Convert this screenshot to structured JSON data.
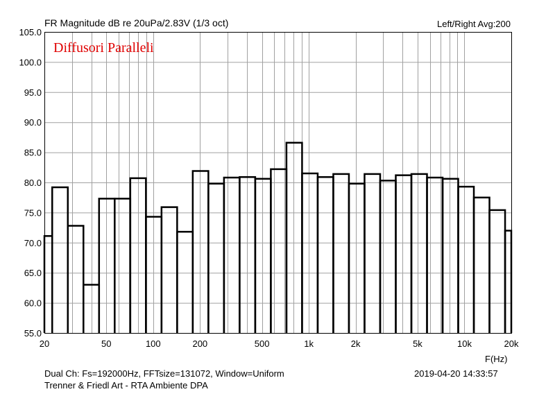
{
  "chart_data": {
    "type": "bar",
    "title": "FR Magnitude dB re 20uPa/2.83V (1/3 oct)",
    "top_right_label": "Left/Right  Avg:200",
    "annotation": "Diffusori Paralleli",
    "xlabel": "F(Hz)",
    "x_scale": "log",
    "xlim": [
      20,
      20000
    ],
    "x_ticks": [
      20,
      50,
      100,
      200,
      500,
      1000,
      2000,
      5000,
      10000,
      20000
    ],
    "x_tick_labels": [
      "20",
      "50",
      "100",
      "200",
      "500",
      "1k",
      "2k",
      "5k",
      "10k",
      "20k"
    ],
    "ylim": [
      55.0,
      105.0
    ],
    "y_ticks": [
      55.0,
      60.0,
      65.0,
      70.0,
      75.0,
      80.0,
      85.0,
      90.0,
      95.0,
      100.0,
      105.0
    ],
    "y_tick_labels": [
      "55.0",
      "60.0",
      "65.0",
      "70.0",
      "75.0",
      "80.0",
      "85.0",
      "90.0",
      "95.0",
      "100.0",
      "105.0"
    ],
    "grid": true,
    "categories": [
      "20",
      "25",
      "31.5",
      "40",
      "50",
      "63",
      "80",
      "100",
      "125",
      "160",
      "200",
      "250",
      "315",
      "400",
      "500",
      "630",
      "800",
      "1k",
      "1.25k",
      "1.6k",
      "2k",
      "2.5k",
      "3.15k",
      "4k",
      "5k",
      "6.3k",
      "8k",
      "10k",
      "12.5k",
      "16k",
      "20k"
    ],
    "values": [
      71.1,
      79.2,
      72.8,
      63.0,
      77.3,
      77.3,
      80.7,
      74.3,
      75.9,
      71.8,
      81.9,
      79.8,
      80.8,
      80.9,
      80.6,
      82.2,
      86.6,
      81.5,
      80.9,
      81.4,
      79.8,
      81.4,
      80.3,
      81.2,
      81.4,
      80.8,
      80.6,
      79.3,
      77.5,
      75.4,
      72.0
    ]
  },
  "footer": {
    "line1": "Dual Ch: Fs=192000Hz, FFTsize=131072, Window=Uniform",
    "line2": "Trenner & Friedl Art - RTA Ambiente      DPA",
    "timestamp": "2019-04-20  14:33:57"
  },
  "colors": {
    "grid": "#a0a0a0",
    "bars": "#000000",
    "annotation": "#e00000"
  }
}
